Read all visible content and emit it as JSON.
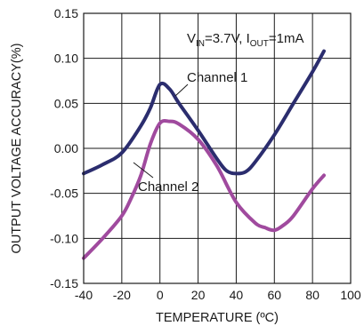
{
  "chart_data": {
    "type": "line",
    "title": "",
    "xlabel": "TEMPERATURE (ºC)",
    "ylabel": "OUTPUT VOLTAGE ACCURACY(%)",
    "xlim": [
      -40,
      100
    ],
    "ylim": [
      -0.15,
      0.15
    ],
    "grid": true,
    "x_ticks": [
      "-40",
      "-20",
      "0",
      "20",
      "40",
      "60",
      "80",
      "100"
    ],
    "y_ticks": [
      "0.15",
      "0.10",
      "0.05",
      "0.00",
      "-0.05",
      "-0.10",
      "-0.15"
    ],
    "condition": {
      "v_label": "V",
      "v_sub": "IN",
      "v_rest": "=3.7V, I",
      "i_sub": "OUT",
      "i_rest": "=1mA"
    },
    "series": [
      {
        "name": "Channel 1",
        "color": "#2b2d6e",
        "x": [
          -40,
          -30,
          -20,
          -10,
          -5,
          0,
          5,
          10,
          20,
          30,
          35,
          40,
          45,
          50,
          60,
          70,
          80,
          86
        ],
        "y": [
          -0.028,
          -0.018,
          -0.005,
          0.025,
          0.045,
          0.071,
          0.066,
          0.05,
          0.02,
          -0.012,
          -0.025,
          -0.028,
          -0.026,
          -0.015,
          0.015,
          0.05,
          0.085,
          0.108
        ]
      },
      {
        "name": "Channel 2",
        "color": "#a04a9e",
        "x": [
          -40,
          -30,
          -20,
          -15,
          -10,
          -5,
          0,
          5,
          10,
          20,
          30,
          40,
          50,
          55,
          60,
          65,
          70,
          80,
          86
        ],
        "y": [
          -0.122,
          -0.1,
          -0.075,
          -0.055,
          -0.03,
          0.005,
          0.028,
          0.03,
          0.027,
          0.01,
          -0.02,
          -0.06,
          -0.083,
          -0.088,
          -0.091,
          -0.085,
          -0.075,
          -0.045,
          -0.03
        ]
      }
    ]
  }
}
